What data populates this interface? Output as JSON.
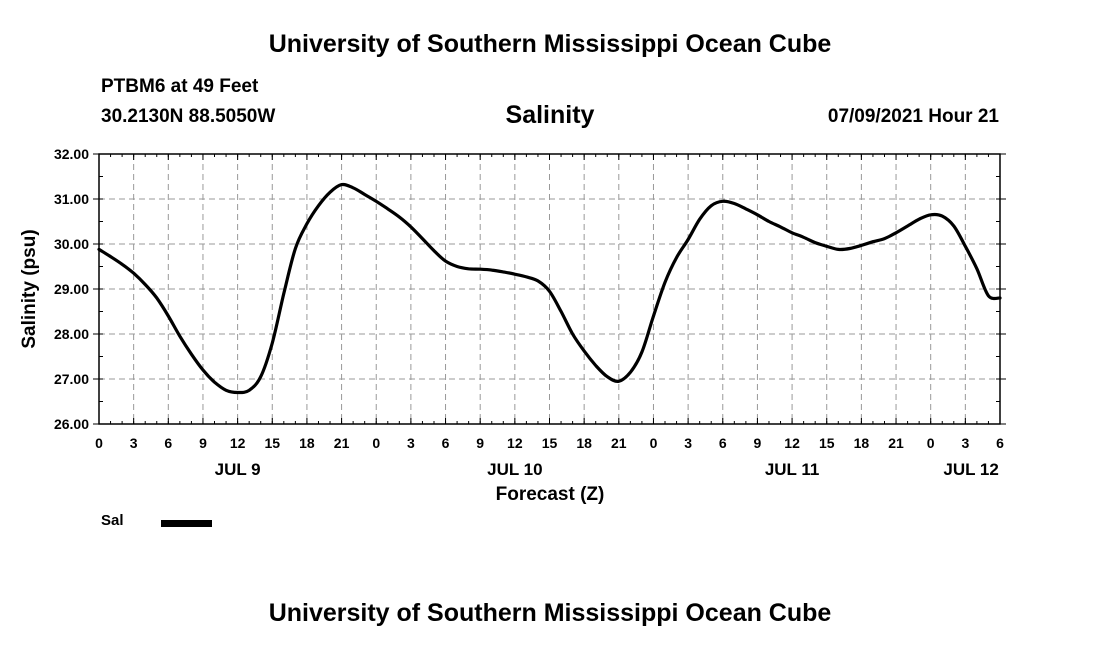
{
  "header": {
    "title": "University of Southern Mississippi Ocean Cube",
    "station": "PTBM6 at 49 Feet",
    "coords": "30.2130N  88.5050W",
    "variable": "Salinity",
    "datetime": "07/09/2021 Hour 21"
  },
  "footer": {
    "title": "University of Southern Mississippi Ocean Cube"
  },
  "chart_data": {
    "type": "line",
    "title": "Salinity",
    "xlabel": "Forecast (Z)",
    "ylabel": "Salinity (psu)",
    "ylim": [
      26.0,
      32.0
    ],
    "yticks": [
      "26.00",
      "27.00",
      "28.00",
      "29.00",
      "30.00",
      "31.00",
      "32.00"
    ],
    "xlim_hours": [
      0,
      78
    ],
    "xtick_labels": [
      "0",
      "3",
      "6",
      "9",
      "12",
      "15",
      "18",
      "21",
      "0",
      "3",
      "6",
      "9",
      "12",
      "15",
      "18",
      "21",
      "0",
      "3",
      "6",
      "9",
      "12",
      "15",
      "18",
      "21",
      "0",
      "3",
      "6"
    ],
    "day_labels": [
      {
        "label": "JUL 9",
        "hour": 12
      },
      {
        "label": "JUL 10",
        "hour": 36
      },
      {
        "label": "JUL 11",
        "hour": 60
      },
      {
        "label": "JUL 12",
        "hour": 75.5
      }
    ],
    "grid": true,
    "legend": "bottom-left",
    "colors": {
      "line": "#000000",
      "grid": "#999999"
    },
    "series": [
      {
        "name": "Sal",
        "x": [
          0,
          1,
          2,
          3,
          4,
          5,
          6,
          7,
          8,
          9,
          10,
          11,
          12,
          13,
          14,
          15,
          16,
          17,
          18,
          19,
          20,
          21,
          22,
          23,
          24,
          25,
          26,
          27,
          28,
          29,
          30,
          31,
          32,
          33,
          34,
          35,
          36,
          37,
          38,
          39,
          40,
          41,
          42,
          43,
          44,
          45,
          46,
          47,
          48,
          49,
          50,
          51,
          52,
          53,
          54,
          55,
          56,
          57,
          58,
          59,
          60,
          61,
          62,
          63,
          64,
          65,
          66,
          67,
          68,
          69,
          70,
          71,
          72,
          73,
          74,
          75,
          76,
          77,
          78
        ],
        "y": [
          29.88,
          29.72,
          29.55,
          29.35,
          29.1,
          28.8,
          28.4,
          27.95,
          27.55,
          27.2,
          26.93,
          26.75,
          26.7,
          26.75,
          27.05,
          27.8,
          28.9,
          29.9,
          30.45,
          30.85,
          31.15,
          31.32,
          31.25,
          31.1,
          30.95,
          30.78,
          30.6,
          30.38,
          30.12,
          29.85,
          29.62,
          29.5,
          29.45,
          29.44,
          29.42,
          29.38,
          29.33,
          29.27,
          29.18,
          28.95,
          28.5,
          28.0,
          27.62,
          27.3,
          27.05,
          26.95,
          27.15,
          27.6,
          28.4,
          29.15,
          29.7,
          30.1,
          30.55,
          30.85,
          30.95,
          30.9,
          30.78,
          30.65,
          30.5,
          30.38,
          30.25,
          30.15,
          30.03,
          29.95,
          29.88,
          29.9,
          29.97,
          30.05,
          30.12,
          30.25,
          30.4,
          30.55,
          30.65,
          30.62,
          30.4,
          29.95,
          29.45,
          28.85,
          28.8
        ]
      }
    ]
  }
}
